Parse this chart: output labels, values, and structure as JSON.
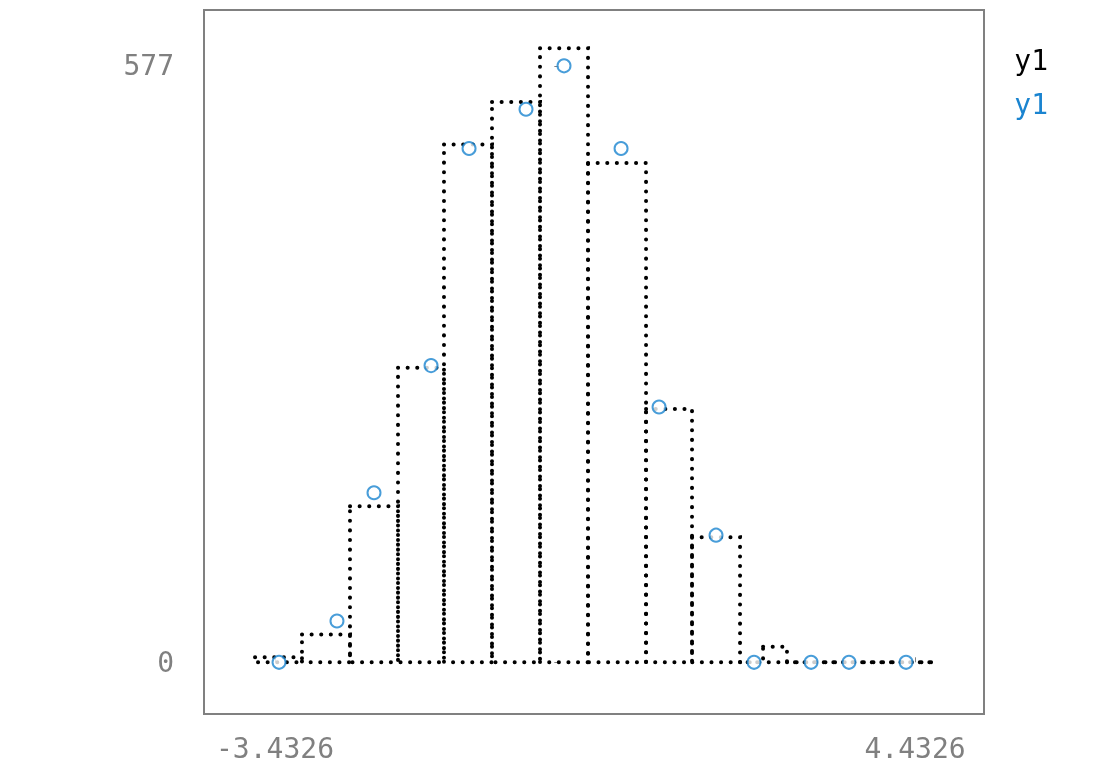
{
  "chart_data": {
    "type": "histogram",
    "xlim": [
      -4.305,
      5.28
    ],
    "ylim": [
      -50,
      631
    ],
    "xticks": [
      -3.4326,
      4.4326
    ],
    "yticks": [
      0,
      577
    ],
    "grid": false,
    "legend": "top right",
    "marker": "circle",
    "line_style": "dotted",
    "series": [
      {
        "name": "y1",
        "color": "#000000",
        "bins": [
          -3.678,
          -3.101,
          -2.511,
          -1.921,
          -1.356,
          -0.766,
          -0.176,
          0.414,
          1.127,
          1.692,
          2.282,
          2.565,
          2.859,
          4.678
        ],
        "values": [
          5,
          27,
          151,
          285,
          501,
          542,
          594,
          483,
          245,
          121,
          0,
          15,
          0
        ]
      },
      {
        "name": "y1",
        "type": "scatter",
        "color": "#1a84d0",
        "x": [
          -3.383,
          -2.671,
          -2.216,
          -1.515,
          -1.048,
          -0.348,
          0.119,
          0.82,
          1.287,
          1.987,
          2.454,
          3.155,
          3.621,
          4.322
        ],
        "values": [
          0,
          40,
          164,
          287,
          497,
          535,
          577,
          497,
          247,
          123,
          0,
          0,
          0,
          0
        ]
      }
    ]
  }
}
